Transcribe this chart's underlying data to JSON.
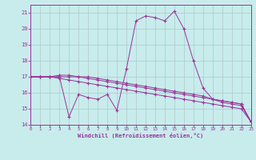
{
  "xlabel": "Windchill (Refroidissement éolien,°C)",
  "xlim": [
    0,
    23
  ],
  "ylim": [
    14,
    21.5
  ],
  "yticks": [
    14,
    15,
    16,
    17,
    18,
    19,
    20,
    21
  ],
  "xticks": [
    0,
    1,
    2,
    3,
    4,
    5,
    6,
    7,
    8,
    9,
    10,
    11,
    12,
    13,
    14,
    15,
    16,
    17,
    18,
    19,
    20,
    21,
    22,
    23
  ],
  "bg_color": "#c8ecec",
  "grid_color": "#b0c8c8",
  "line_color": "#993399",
  "line1_x": [
    0,
    1,
    2,
    3,
    4,
    5,
    6,
    7,
    8,
    9,
    10,
    11,
    12,
    13,
    14,
    15,
    16,
    17,
    18,
    19,
    20,
    21,
    22,
    23
  ],
  "line1_y": [
    17.0,
    17.0,
    17.0,
    17.0,
    14.5,
    15.9,
    15.7,
    15.6,
    15.9,
    14.9,
    17.5,
    20.5,
    20.8,
    20.7,
    20.5,
    21.1,
    20.0,
    18.0,
    16.3,
    15.6,
    15.4,
    15.3,
    15.2,
    14.2
  ],
  "line2_x": [
    0,
    1,
    2,
    3,
    4,
    5,
    6,
    7,
    8,
    9,
    10,
    11,
    12,
    13,
    14,
    15,
    16,
    17,
    18,
    19,
    20,
    21,
    22,
    23
  ],
  "line2_y": [
    17.0,
    17.0,
    17.0,
    17.0,
    17.0,
    17.0,
    16.9,
    16.8,
    16.7,
    16.6,
    16.5,
    16.4,
    16.3,
    16.2,
    16.1,
    16.0,
    15.9,
    15.8,
    15.7,
    15.6,
    15.5,
    15.4,
    15.3,
    14.2
  ],
  "line3_x": [
    0,
    1,
    2,
    3,
    4,
    5,
    6,
    7,
    8,
    9,
    10,
    11,
    12,
    13,
    14,
    15,
    16,
    17,
    18,
    19,
    20,
    21,
    22,
    23
  ],
  "line3_y": [
    17.0,
    17.0,
    17.0,
    16.9,
    16.8,
    16.7,
    16.6,
    16.5,
    16.4,
    16.3,
    16.2,
    16.1,
    16.0,
    15.9,
    15.8,
    15.7,
    15.6,
    15.5,
    15.4,
    15.3,
    15.2,
    15.1,
    15.0,
    14.2
  ],
  "line4_x": [
    0,
    1,
    2,
    3,
    4,
    5,
    6,
    7,
    8,
    9,
    10,
    11,
    12,
    13,
    14,
    15,
    16,
    17,
    18,
    19,
    20,
    21,
    22,
    23
  ],
  "line4_y": [
    17.0,
    17.0,
    17.0,
    17.1,
    17.1,
    17.0,
    17.0,
    16.9,
    16.8,
    16.7,
    16.6,
    16.5,
    16.4,
    16.3,
    16.2,
    16.1,
    16.0,
    15.9,
    15.8,
    15.6,
    15.5,
    15.4,
    15.3,
    14.2
  ]
}
